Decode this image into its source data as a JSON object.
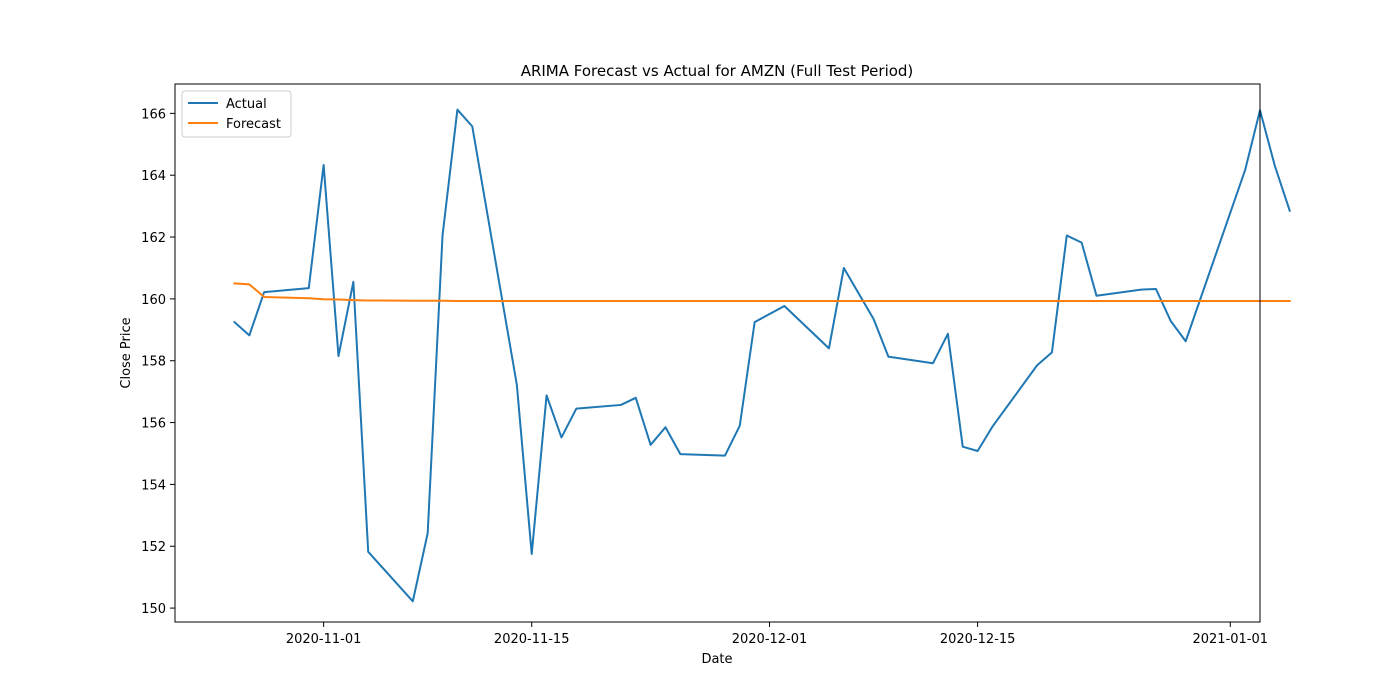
{
  "chart_data": {
    "type": "line",
    "title": "ARIMA Forecast vs Actual for AMZN (Full Test Period)",
    "xlabel": "Date",
    "ylabel": "Close Price",
    "xlim": [
      "2020-10-22",
      "2021-01-03"
    ],
    "ylim": [
      149.55,
      166.95
    ],
    "x_ticks": [
      "2020-11-01",
      "2020-11-15",
      "2020-12-01",
      "2020-12-15",
      "2021-01-01"
    ],
    "y_ticks": [
      150,
      152,
      154,
      156,
      158,
      160,
      162,
      164,
      166
    ],
    "grid": false,
    "legend_position": "upper-left",
    "series": [
      {
        "name": "Actual",
        "color": "#1f77b4",
        "points": [
          [
            "2020-10-26",
            159.25
          ],
          [
            "2020-10-27",
            158.82
          ],
          [
            "2020-10-28",
            160.22
          ],
          [
            "2020-10-31",
            160.35
          ],
          [
            "2020-11-01",
            164.33
          ],
          [
            "2020-11-02",
            158.15
          ],
          [
            "2020-11-03",
            160.55
          ],
          [
            "2020-11-04",
            151.82
          ],
          [
            "2020-11-07",
            150.22
          ],
          [
            "2020-11-08",
            152.42
          ],
          [
            "2020-11-09",
            162.05
          ],
          [
            "2020-11-10",
            166.12
          ],
          [
            "2020-11-11",
            165.58
          ],
          [
            "2020-11-14",
            157.22
          ],
          [
            "2020-11-15",
            151.75
          ],
          [
            "2020-11-16",
            156.88
          ],
          [
            "2020-11-17",
            155.52
          ],
          [
            "2020-11-18",
            156.45
          ],
          [
            "2020-11-21",
            156.57
          ],
          [
            "2020-11-22",
            156.8
          ],
          [
            "2020-11-23",
            155.28
          ],
          [
            "2020-11-24",
            155.85
          ],
          [
            "2020-11-25",
            154.98
          ],
          [
            "2020-11-28",
            154.93
          ],
          [
            "2020-11-29",
            155.9
          ],
          [
            "2020-11-30",
            159.25
          ],
          [
            "2020-12-02",
            159.77
          ],
          [
            "2020-12-05",
            158.4
          ],
          [
            "2020-12-06",
            161.0
          ],
          [
            "2020-12-08",
            159.35
          ],
          [
            "2020-12-09",
            158.13
          ],
          [
            "2020-12-12",
            157.92
          ],
          [
            "2020-12-13",
            158.87
          ],
          [
            "2020-12-14",
            155.22
          ],
          [
            "2020-12-15",
            155.08
          ],
          [
            "2020-12-16",
            155.87
          ],
          [
            "2020-12-19",
            157.85
          ],
          [
            "2020-12-20",
            158.27
          ],
          [
            "2020-12-21",
            162.05
          ],
          [
            "2020-12-22",
            161.82
          ],
          [
            "2020-12-23",
            160.1
          ],
          [
            "2020-12-26",
            160.3
          ],
          [
            "2020-12-27",
            160.32
          ],
          [
            "2020-12-28",
            159.28
          ],
          [
            "2020-12-29",
            158.63
          ],
          [
            "2021-01-02",
            164.17
          ],
          [
            "2021-01-03",
            166.1
          ],
          [
            "2021-01-04",
            164.3
          ],
          [
            "2021-01-05",
            162.85
          ]
        ]
      },
      {
        "name": "Forecast",
        "color": "#ff7f0e",
        "points": [
          [
            "2020-10-26",
            160.5
          ],
          [
            "2020-10-27",
            160.47
          ],
          [
            "2020-10-28",
            160.06
          ],
          [
            "2020-10-31",
            160.02
          ],
          [
            "2020-11-01",
            159.99
          ],
          [
            "2020-11-02",
            159.98
          ],
          [
            "2020-11-03",
            159.96
          ],
          [
            "2020-11-04",
            159.95
          ],
          [
            "2020-11-07",
            159.94
          ],
          [
            "2020-11-08",
            159.94
          ],
          [
            "2020-11-09",
            159.94
          ],
          [
            "2020-11-10",
            159.93
          ],
          [
            "2020-11-11",
            159.93
          ],
          [
            "2020-11-14",
            159.93
          ],
          [
            "2020-11-15",
            159.93
          ],
          [
            "2020-11-16",
            159.93
          ],
          [
            "2020-11-17",
            159.93
          ],
          [
            "2020-11-18",
            159.93
          ],
          [
            "2020-11-21",
            159.93
          ],
          [
            "2020-11-22",
            159.93
          ],
          [
            "2020-11-23",
            159.93
          ],
          [
            "2020-11-24",
            159.93
          ],
          [
            "2020-11-25",
            159.93
          ],
          [
            "2020-11-28",
            159.93
          ],
          [
            "2020-11-29",
            159.93
          ],
          [
            "2020-11-30",
            159.93
          ],
          [
            "2020-12-02",
            159.93
          ],
          [
            "2020-12-05",
            159.93
          ],
          [
            "2020-12-06",
            159.93
          ],
          [
            "2020-12-08",
            159.93
          ],
          [
            "2020-12-09",
            159.93
          ],
          [
            "2020-12-12",
            159.93
          ],
          [
            "2020-12-13",
            159.93
          ],
          [
            "2020-12-14",
            159.93
          ],
          [
            "2020-12-15",
            159.93
          ],
          [
            "2020-12-16",
            159.93
          ],
          [
            "2020-12-19",
            159.93
          ],
          [
            "2020-12-20",
            159.93
          ],
          [
            "2020-12-21",
            159.93
          ],
          [
            "2020-12-22",
            159.93
          ],
          [
            "2020-12-23",
            159.93
          ],
          [
            "2020-12-26",
            159.93
          ],
          [
            "2020-12-27",
            159.93
          ],
          [
            "2020-12-28",
            159.93
          ],
          [
            "2020-12-29",
            159.93
          ],
          [
            "2021-01-02",
            159.93
          ],
          [
            "2021-01-03",
            159.93
          ],
          [
            "2021-01-04",
            159.93
          ],
          [
            "2021-01-05",
            159.93
          ]
        ]
      }
    ]
  }
}
